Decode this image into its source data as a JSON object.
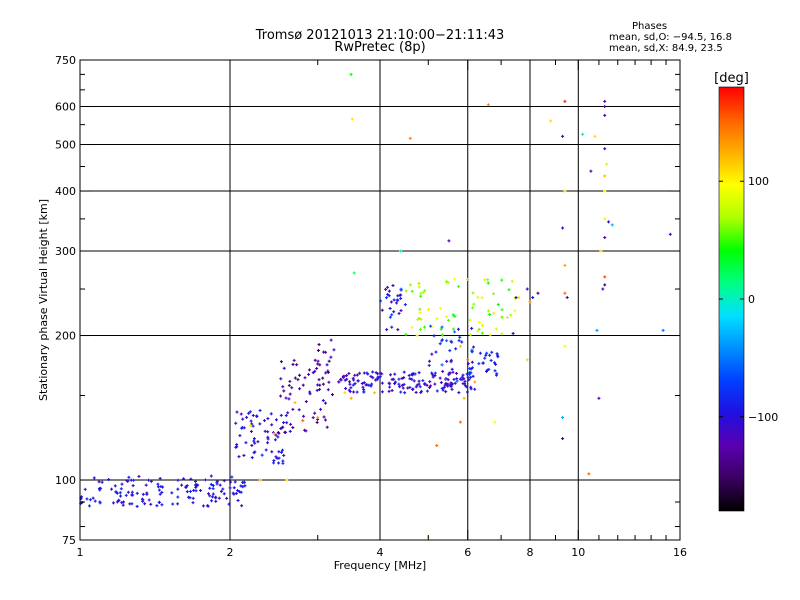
{
  "header": {
    "title_line1": "Tromsø 20121013 21:10:00−21:11:43",
    "title_line2": "RwPretec (8p)"
  },
  "stats": {
    "heading": "Phases",
    "o_line": "mean, sd,O: −94.5, 16.8",
    "x_line": "mean, sd,X:  84.9, 23.5"
  },
  "colorbar": {
    "unit": "[deg]",
    "ticks": [
      {
        "value": 100,
        "label": "100"
      },
      {
        "value": 0,
        "label": "0"
      },
      {
        "value": -100,
        "label": "−100"
      }
    ],
    "range": [
      -180,
      180
    ],
    "gradient": [
      "#000000",
      "#3a0060",
      "#5a00b0",
      "#2010e0",
      "#0040ff",
      "#0090ff",
      "#00e0ff",
      "#00ff80",
      "#00ff00",
      "#b0ff00",
      "#ffff00",
      "#ffb000",
      "#ff6000",
      "#ff0000"
    ]
  },
  "chart_data": {
    "type": "scatter",
    "xlabel": "Frequency [MHz]",
    "ylabel": "Stationary phase Virtual Height [km]",
    "xscale": "log",
    "yscale": "log",
    "xlim": [
      1,
      16
    ],
    "ylim": [
      75,
      750
    ],
    "x_ticks": [
      {
        "value": 1,
        "label": "1"
      },
      {
        "value": 2,
        "label": "2"
      },
      {
        "value": 4,
        "label": "4"
      },
      {
        "value": 6,
        "label": "6"
      },
      {
        "value": 8,
        "label": "8"
      },
      {
        "value": 10,
        "label": "10"
      },
      {
        "value": 16,
        "label": "16"
      }
    ],
    "y_ticks": [
      {
        "value": 75,
        "label": "75"
      },
      {
        "value": 100,
        "label": "100"
      },
      {
        "value": 200,
        "label": "200"
      },
      {
        "value": 300,
        "label": "300"
      },
      {
        "value": 400,
        "label": "400"
      },
      {
        "value": 500,
        "label": "500"
      },
      {
        "value": 600,
        "label": "600"
      },
      {
        "value": 750,
        "label": "750"
      }
    ],
    "grid": true,
    "grid_x": [
      2,
      4,
      6,
      8,
      10
    ],
    "grid_y": [
      100,
      200,
      300,
      400,
      500,
      600
    ],
    "minor_x": [
      3,
      5,
      7,
      9,
      11,
      12,
      13,
      14,
      15
    ],
    "minor_y": [
      80,
      90,
      150,
      250,
      350,
      450,
      550,
      650,
      700
    ],
    "color_meaning": "phase [deg]",
    "clusters": [
      {
        "name": "low band",
        "x": [
          1.0,
          2.15
        ],
        "y": [
          88,
          102
        ],
        "phase": [
          -115,
          -80
        ],
        "count": 150
      },
      {
        "name": "rise 2-2.6",
        "x": [
          2.05,
          2.6
        ],
        "y": [
          108,
          140
        ],
        "phase": [
          -120,
          -80
        ],
        "count": 70
      },
      {
        "name": "rise 2.5-3.2",
        "x": [
          2.5,
          3.2
        ],
        "y": [
          125,
          185
        ],
        "phase": [
          -145,
          -100
        ],
        "count": 60
      },
      {
        "name": "cusp",
        "x": [
          3.0,
          3.25
        ],
        "y": [
          150,
          198
        ],
        "phase": [
          -155,
          -110
        ],
        "count": 18
      },
      {
        "name": "F layer band",
        "x": [
          3.3,
          6.2
        ],
        "y": [
          152,
          168
        ],
        "phase": [
          -130,
          -80
        ],
        "count": 160
      },
      {
        "name": "upper trace 4-4.5",
        "x": [
          4.0,
          4.5
        ],
        "y": [
          205,
          255
        ],
        "phase": [
          -140,
          -60
        ],
        "count": 30
      },
      {
        "name": "X trace",
        "x": [
          4.5,
          7.5
        ],
        "y": [
          200,
          265
        ],
        "phase": [
          40,
          110
        ],
        "count": 70
      },
      {
        "name": "mid trace",
        "x": [
          5.0,
          6.2
        ],
        "y": [
          160,
          210
        ],
        "phase": [
          -120,
          -40
        ],
        "count": 40
      },
      {
        "name": "rise 6-7",
        "x": [
          6.0,
          7.0
        ],
        "y": [
          165,
          185
        ],
        "phase": [
          -120,
          -70
        ],
        "count": 25
      }
    ],
    "points": [
      {
        "x": 3.5,
        "y": 700,
        "phase": 40
      },
      {
        "x": 3.52,
        "y": 565,
        "phase": 105
      },
      {
        "x": 4.6,
        "y": 515,
        "phase": 140
      },
      {
        "x": 3.55,
        "y": 270,
        "phase": 20
      },
      {
        "x": 5.5,
        "y": 315,
        "phase": -120
      },
      {
        "x": 4.4,
        "y": 300,
        "phase": 0
      },
      {
        "x": 6.6,
        "y": 605,
        "phase": 140
      },
      {
        "x": 8.8,
        "y": 560,
        "phase": 110
      },
      {
        "x": 9.4,
        "y": 615,
        "phase": 170
      },
      {
        "x": 9.3,
        "y": 520,
        "phase": -120
      },
      {
        "x": 10.2,
        "y": 525,
        "phase": 10
      },
      {
        "x": 11.3,
        "y": 615,
        "phase": -110
      },
      {
        "x": 11.3,
        "y": 600,
        "phase": -140
      },
      {
        "x": 11.3,
        "y": 575,
        "phase": -120
      },
      {
        "x": 10.8,
        "y": 520,
        "phase": 110
      },
      {
        "x": 11.3,
        "y": 490,
        "phase": -100
      },
      {
        "x": 11.4,
        "y": 455,
        "phase": 80
      },
      {
        "x": 11.3,
        "y": 430,
        "phase": 120
      },
      {
        "x": 10.6,
        "y": 440,
        "phase": -120
      },
      {
        "x": 11.3,
        "y": 400,
        "phase": 90
      },
      {
        "x": 11.3,
        "y": 350,
        "phase": 100
      },
      {
        "x": 11.3,
        "y": 320,
        "phase": -120
      },
      {
        "x": 11.5,
        "y": 345,
        "phase": -100
      },
      {
        "x": 11.7,
        "y": 340,
        "phase": -30
      },
      {
        "x": 11.1,
        "y": 300,
        "phase": 110
      },
      {
        "x": 11.3,
        "y": 265,
        "phase": 160
      },
      {
        "x": 11.3,
        "y": 255,
        "phase": -150
      },
      {
        "x": 11.2,
        "y": 250,
        "phase": -120
      },
      {
        "x": 9.4,
        "y": 400,
        "phase": 110
      },
      {
        "x": 9.3,
        "y": 335,
        "phase": -100
      },
      {
        "x": 9.4,
        "y": 280,
        "phase": 130
      },
      {
        "x": 9.4,
        "y": 245,
        "phase": 150
      },
      {
        "x": 9.5,
        "y": 240,
        "phase": -120
      },
      {
        "x": 9.4,
        "y": 190,
        "phase": 100
      },
      {
        "x": 9.3,
        "y": 135,
        "phase": -30
      },
      {
        "x": 9.3,
        "y": 122,
        "phase": -140
      },
      {
        "x": 10.5,
        "y": 103,
        "phase": 150
      },
      {
        "x": 10.9,
        "y": 205,
        "phase": -40
      },
      {
        "x": 11.0,
        "y": 148,
        "phase": -120
      },
      {
        "x": 14.8,
        "y": 205,
        "phase": -50
      },
      {
        "x": 15.3,
        "y": 325,
        "phase": -120
      },
      {
        "x": 8.3,
        "y": 245,
        "phase": -150
      },
      {
        "x": 8.1,
        "y": 240,
        "phase": -100
      },
      {
        "x": 7.9,
        "y": 250,
        "phase": -110
      },
      {
        "x": 8.0,
        "y": 235,
        "phase": 140
      },
      {
        "x": 7.6,
        "y": 240,
        "phase": 110
      },
      {
        "x": 7.5,
        "y": 240,
        "phase": -120
      },
      {
        "x": 7.4,
        "y": 202,
        "phase": -130
      },
      {
        "x": 7.9,
        "y": 178,
        "phase": 110
      },
      {
        "x": 6.8,
        "y": 132,
        "phase": 100
      },
      {
        "x": 5.2,
        "y": 118,
        "phase": 150
      },
      {
        "x": 5.8,
        "y": 132,
        "phase": 150
      },
      {
        "x": 5.0,
        "y": 76,
        "phase": 100
      },
      {
        "x": 3.4,
        "y": 152,
        "phase": 110
      },
      {
        "x": 3.5,
        "y": 148,
        "phase": 130
      },
      {
        "x": 2.7,
        "y": 145,
        "phase": 120
      },
      {
        "x": 2.8,
        "y": 133,
        "phase": 150
      },
      {
        "x": 2.2,
        "y": 130,
        "phase": 110
      },
      {
        "x": 2.45,
        "y": 125,
        "phase": 120
      },
      {
        "x": 2.3,
        "y": 100,
        "phase": 120
      },
      {
        "x": 2.6,
        "y": 100,
        "phase": 110
      },
      {
        "x": 3.0,
        "y": 135,
        "phase": 130
      },
      {
        "x": 3.9,
        "y": 152,
        "phase": 120
      },
      {
        "x": 5.9,
        "y": 148,
        "phase": 120
      },
      {
        "x": 6.2,
        "y": 160,
        "phase": 130
      },
      {
        "x": 6.0,
        "y": 178,
        "phase": 150
      },
      {
        "x": 5.8,
        "y": 190,
        "phase": 120
      }
    ]
  }
}
